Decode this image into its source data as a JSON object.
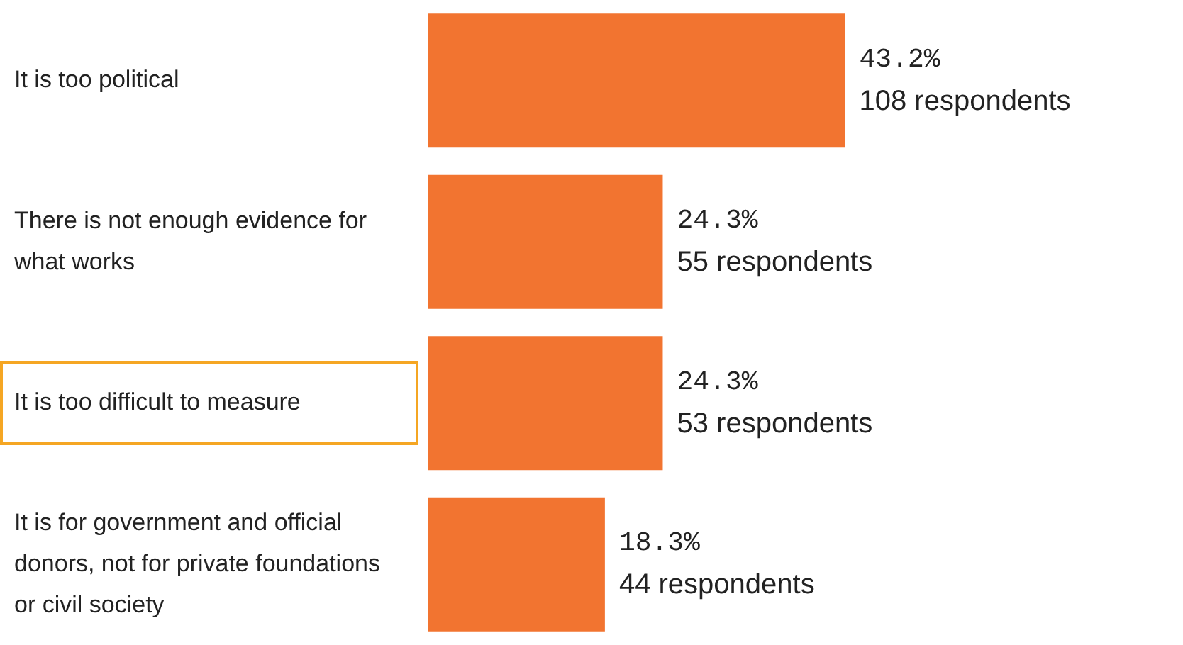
{
  "chart_data": {
    "type": "bar",
    "orientation": "horizontal",
    "categories": [
      "It is too political",
      "There is not enough evidence for what works",
      "It is too difficult to measure",
      "It is for government and official donors, not for private foundations or civil society"
    ],
    "values": [
      43.2,
      24.3,
      24.3,
      18.3
    ],
    "value_labels": [
      "43.2%\n108 respondents",
      "24.3%\n55 respondents",
      "24.3%\n53 respondents",
      "18.3%\n44 respondents"
    ],
    "color": "#f27430",
    "legend": false
  }
}
